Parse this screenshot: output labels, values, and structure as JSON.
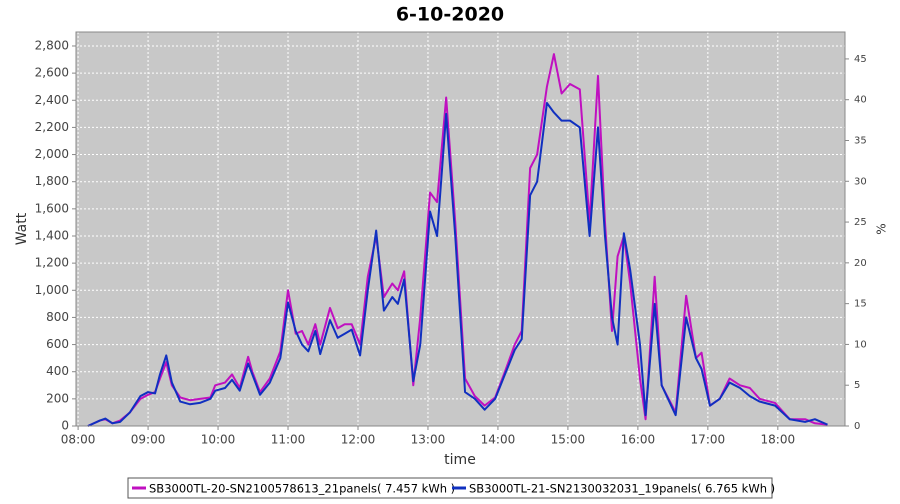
{
  "chart_data": {
    "type": "line",
    "title": "6-10-2020",
    "xlabel": "time",
    "ylabel": "Watt",
    "y2label": "%",
    "x": [
      8.14,
      8.31,
      8.39,
      8.49,
      8.6,
      8.74,
      8.89,
      9.0,
      9.1,
      9.17,
      9.26,
      9.34,
      9.46,
      9.6,
      9.74,
      9.89,
      9.96,
      10.1,
      10.2,
      10.31,
      10.43,
      10.49,
      10.6,
      10.74,
      10.89,
      11.0,
      11.11,
      11.2,
      11.29,
      11.39,
      11.46,
      11.6,
      11.71,
      11.81,
      11.91,
      12.03,
      12.14,
      12.26,
      12.37,
      12.49,
      12.57,
      12.66,
      12.79,
      12.89,
      13.03,
      13.13,
      13.26,
      13.39,
      13.53,
      13.67,
      13.81,
      13.96,
      14.1,
      14.24,
      14.34,
      14.46,
      14.56,
      14.7,
      14.8,
      14.91,
      15.03,
      15.17,
      15.31,
      15.43,
      15.53,
      15.63,
      15.71,
      15.8,
      15.89,
      16.03,
      16.11,
      16.24,
      16.34,
      16.54,
      16.69,
      16.83,
      16.91,
      17.03,
      17.17,
      17.31,
      17.46,
      17.6,
      17.74,
      17.96,
      18.17,
      18.39,
      18.53,
      18.71
    ],
    "series": [
      {
        "name": "SB3000TL-20-SN2100578613_21panels( 7.457 kWh )",
        "color": "#c010c0",
        "values": [
          0,
          40,
          50,
          20,
          40,
          100,
          200,
          230,
          250,
          350,
          470,
          300,
          210,
          190,
          200,
          210,
          300,
          320,
          380,
          280,
          510,
          400,
          250,
          350,
          550,
          1000,
          680,
          700,
          600,
          750,
          600,
          870,
          720,
          750,
          750,
          600,
          1100,
          1400,
          950,
          1050,
          1000,
          1140,
          300,
          800,
          1720,
          1650,
          2420,
          1500,
          350,
          220,
          150,
          210,
          400,
          600,
          700,
          1900,
          2000,
          2500,
          2740,
          2450,
          2520,
          2480,
          1500,
          2580,
          1500,
          700,
          1250,
          1400,
          1050,
          350,
          50,
          1100,
          300,
          100,
          960,
          500,
          540,
          150,
          200,
          350,
          300,
          280,
          200,
          170,
          50,
          50,
          20,
          10
        ]
      },
      {
        "name": "SB3000TL-21-SN2130032031_19panels( 6.765 kWh )",
        "color": "#1030c0",
        "values": [
          0,
          40,
          55,
          20,
          30,
          100,
          220,
          250,
          240,
          380,
          520,
          320,
          180,
          160,
          170,
          200,
          260,
          280,
          340,
          260,
          460,
          380,
          230,
          320,
          500,
          910,
          700,
          600,
          550,
          700,
          530,
          780,
          650,
          680,
          710,
          520,
          1000,
          1440,
          850,
          950,
          900,
          1080,
          330,
          600,
          1580,
          1400,
          2300,
          1400,
          250,
          200,
          120,
          200,
          380,
          560,
          640,
          1700,
          1800,
          2380,
          2310,
          2250,
          2250,
          2200,
          1400,
          2200,
          1400,
          800,
          600,
          1420,
          1150,
          600,
          80,
          900,
          300,
          80,
          800,
          500,
          420,
          150,
          200,
          320,
          280,
          220,
          180,
          150,
          50,
          30,
          50,
          10
        ]
      }
    ],
    "xlim": [
      7.97,
      18.96
    ],
    "xticks": [
      {
        "value": 8,
        "label": "08:00"
      },
      {
        "value": 9,
        "label": "09:00"
      },
      {
        "value": 10,
        "label": "10:00"
      },
      {
        "value": 11,
        "label": "11:00"
      },
      {
        "value": 12,
        "label": "12:00"
      },
      {
        "value": 13,
        "label": "13:00"
      },
      {
        "value": 14,
        "label": "14:00"
      },
      {
        "value": 15,
        "label": "15:00"
      },
      {
        "value": 16,
        "label": "16:00"
      },
      {
        "value": 17,
        "label": "17:00"
      },
      {
        "value": 18,
        "label": "18:00"
      }
    ],
    "ylim": [
      0,
      2903
    ],
    "yticks": [
      0,
      200,
      400,
      600,
      800,
      {
        "value": 1000,
        "label": "1,000"
      },
      {
        "value": 1200,
        "label": "1,200"
      },
      {
        "value": 1400,
        "label": "1,400"
      },
      {
        "value": 1600,
        "label": "1,600"
      },
      {
        "value": 1800,
        "label": "1,800"
      },
      {
        "value": 2000,
        "label": "2,000"
      },
      {
        "value": 2200,
        "label": "2,200"
      },
      {
        "value": 2400,
        "label": "2,400"
      },
      {
        "value": 2600,
        "label": "2,600"
      },
      {
        "value": 2800,
        "label": "2,800"
      }
    ],
    "y2lim": [
      0,
      48.3
    ],
    "y2ticks": [
      0,
      5,
      10,
      15,
      20,
      25,
      30,
      35,
      40,
      45
    ],
    "grid": true
  }
}
